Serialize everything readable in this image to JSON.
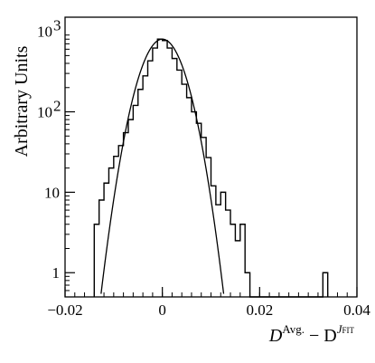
{
  "chart_data": {
    "type": "histogram",
    "ylabel": "Arbitrary Units",
    "xlabel_main": "D",
    "xlabel_sup1": "Avg.",
    "xlabel_minus": " − D",
    "xlabel_sup2": "J",
    "xlabel_sup2_sub": "FIT",
    "xlim": [
      -0.02,
      0.04
    ],
    "ylim": [
      0.5,
      1500
    ],
    "yscale": "log",
    "x_ticks": [
      {
        "value": -0.02,
        "label": "−0.02"
      },
      {
        "value": 0,
        "label": "0"
      },
      {
        "value": 0.02,
        "label": "0.02"
      },
      {
        "value": 0.04,
        "label": "0.04"
      }
    ],
    "y_ticks": [
      {
        "value": 1,
        "label": "1"
      },
      {
        "value": 10,
        "label": "10"
      },
      {
        "value": 100,
        "label": "10",
        "exp": "2"
      },
      {
        "value": 1000,
        "label": "10",
        "exp": "3"
      }
    ],
    "bin_width": 0.001,
    "histogram": {
      "bin_edges_start": -0.014,
      "counts": [
        4,
        8,
        13,
        20,
        28,
        38,
        55,
        80,
        120,
        190,
        280,
        430,
        620,
        800,
        770,
        620,
        460,
        330,
        220,
        150,
        100,
        72,
        48,
        27,
        12,
        7,
        10,
        6,
        4,
        2.5,
        4,
        1,
        0,
        0,
        0,
        0,
        0,
        0,
        0,
        0,
        0,
        0,
        0,
        0,
        0,
        0,
        0,
        1
      ]
    },
    "fit_curve": {
      "type": "gaussian",
      "mean": 0.0,
      "sigma": 0.0033,
      "amplitude": 800
    }
  }
}
